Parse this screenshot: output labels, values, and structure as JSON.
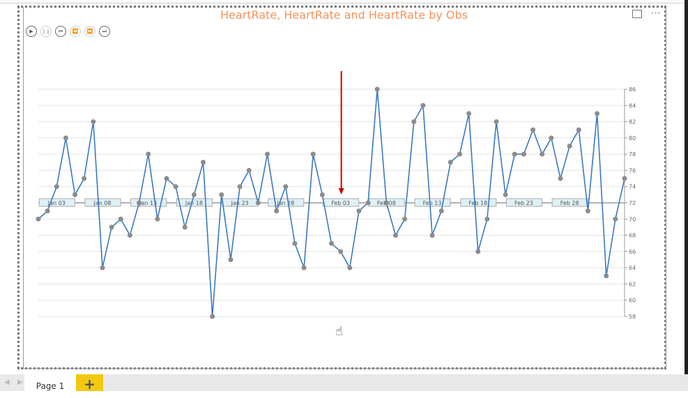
{
  "title": "HeartRate, HeartRate and HeartRate by Obs",
  "colors": {
    "title": "#f4935a",
    "line": "#3a78c0",
    "marker": "#8c8c8c",
    "annotation_arrow": "#cc0000",
    "add_tab": "#f2c811"
  },
  "play_controls": [
    "play-icon",
    "pause-icon",
    "skip-to-start-icon",
    "step-back-icon",
    "step-forward-icon",
    "skip-to-end-icon"
  ],
  "header_icons": [
    "focus-mode-icon",
    "more-options-icon"
  ],
  "tabs": {
    "pages": [
      "Page 1"
    ],
    "add_label": "+"
  },
  "chart_data": {
    "type": "line",
    "markers": true,
    "x_start": "Jan 01",
    "x_tick_labels": [
      "Jan 03",
      "Jan 08",
      "Jan 13",
      "Jan 18",
      "Jan 23",
      "Jan 28",
      "Feb 03",
      "Feb 08",
      "Feb 13",
      "Feb 18",
      "Feb 23",
      "Feb 28"
    ],
    "x_tick_indices": [
      2,
      7,
      12,
      17,
      22,
      27,
      33,
      38,
      43,
      48,
      53,
      58
    ],
    "values": [
      70,
      71,
      74,
      80,
      73,
      75,
      82,
      64,
      69,
      70,
      68,
      72,
      78,
      70,
      75,
      74,
      69,
      73,
      77,
      58,
      73,
      65,
      74,
      76,
      72,
      78,
      71,
      74,
      67,
      64,
      78,
      73,
      67,
      66,
      64,
      71,
      72,
      86,
      72,
      68,
      70,
      82,
      84,
      68,
      71,
      77,
      78,
      83,
      66,
      70,
      82,
      73,
      78,
      78,
      81,
      78,
      80,
      75,
      79,
      81,
      71,
      83,
      63,
      70,
      75
    ],
    "ylim": [
      58,
      86
    ],
    "y_ticks": [
      58,
      60,
      62,
      64,
      66,
      68,
      70,
      72,
      74,
      76,
      78,
      80,
      82,
      84,
      86
    ],
    "y_axis_position": "right",
    "x_axis_crosses_at": 72,
    "grid": true,
    "annotation": {
      "type": "arrow",
      "points_to": "Feb 03"
    }
  }
}
